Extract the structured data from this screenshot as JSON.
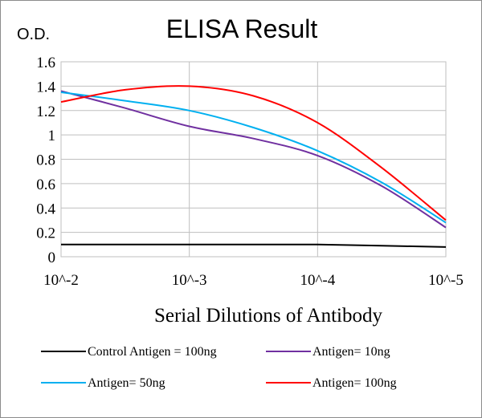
{
  "chart_data": {
    "type": "line",
    "title": "ELISA Result",
    "ylabel": "O.D.",
    "xlabel": "Serial Dilutions  of Antibody",
    "x_ticks": [
      "10^-2",
      "10^-3",
      "10^-4",
      "10^-5"
    ],
    "y_ticks": [
      "0",
      "0.2",
      "0.4",
      "0.6",
      "0.8",
      "1",
      "1.2",
      "1.4",
      "1.6"
    ],
    "ylim": [
      0,
      1.6
    ],
    "grid": true,
    "legend_position": "bottom",
    "series": [
      {
        "name": "Control Antigen = 100ng",
        "color": "#000000",
        "x": [
          -2,
          -2.5,
          -3,
          -3.5,
          -4,
          -4.5,
          -5
        ],
        "y": [
          0.1,
          0.1,
          0.1,
          0.1,
          0.1,
          0.09,
          0.08
        ]
      },
      {
        "name": "Antigen= 10ng",
        "color": "#7030a0",
        "x": [
          -2,
          -2.5,
          -3,
          -3.5,
          -4,
          -4.5,
          -5
        ],
        "y": [
          1.36,
          1.22,
          1.07,
          0.97,
          0.83,
          0.58,
          0.24
        ]
      },
      {
        "name": "Antigen= 50ng",
        "color": "#00b0f0",
        "x": [
          -2,
          -2.5,
          -3,
          -3.5,
          -4,
          -4.5,
          -5
        ],
        "y": [
          1.35,
          1.28,
          1.2,
          1.06,
          0.87,
          0.61,
          0.28
        ]
      },
      {
        "name": "Antigen= 100ng",
        "color": "#ff0000",
        "x": [
          -2,
          -2.5,
          -3,
          -3.5,
          -4,
          -4.5,
          -5
        ],
        "y": [
          1.27,
          1.37,
          1.4,
          1.32,
          1.1,
          0.73,
          0.3
        ]
      }
    ]
  }
}
